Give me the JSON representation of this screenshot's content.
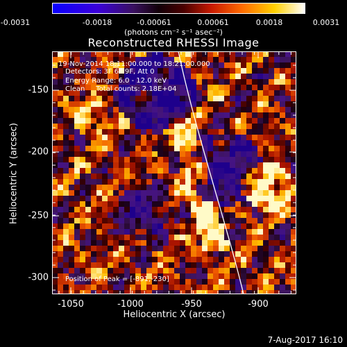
{
  "colorbar": {
    "tick_labels": [
      "-0.0031",
      "-0.0018",
      "-0.00061",
      "0.00061",
      "0.0018",
      "0.0031"
    ],
    "units_label": "(photons cm⁻² s⁻¹ asec⁻²)",
    "vmin": -0.0031,
    "vmax": 0.0031,
    "colormap": "purple-black-red-yellow-white"
  },
  "title": "Reconstructed RHESSI Image",
  "annotations": {
    "line1": "19-Nov-2014 18:11:00.000 to 18:21:00.000",
    "line2": "Detectors: 3F 6F 9F, Att 0",
    "line3": "Energy Range: 6.0 - 12.0 keV",
    "line4": "Clean     Total counts: 2.18E+04",
    "peak": "Position of Peak = [-891,-230]"
  },
  "axes": {
    "xlabel": "Heliocentric X (arcsec)",
    "ylabel": "Heliocentric Y (arcsec)",
    "x_ticks": [
      "-1050",
      "-1000",
      "-950",
      "-900"
    ],
    "y_ticks": [
      "-150",
      "-200",
      "-250",
      "-300"
    ],
    "xlim": [
      -1065,
      -877
    ],
    "ylim": [
      -312,
      -126
    ]
  },
  "footer": "7-Aug-2017 16:10"
}
